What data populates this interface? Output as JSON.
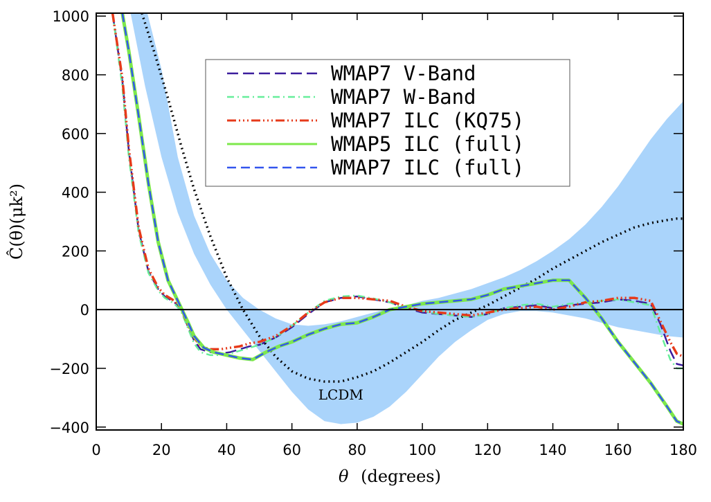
{
  "chart_data": {
    "type": "line",
    "title": "",
    "xlabel_symbol": "θ",
    "xlabel": "(degrees)",
    "ylabel": "Ĉ(θ)(μk²)",
    "xlim": [
      0,
      180
    ],
    "ylim": [
      -410,
      1010
    ],
    "xticks": [
      0,
      20,
      40,
      60,
      80,
      100,
      120,
      140,
      160,
      180
    ],
    "yticks": [
      -400,
      -200,
      0,
      200,
      400,
      600,
      800,
      1000
    ],
    "ytick_labels": [
      "−400",
      "−200",
      "0",
      "200",
      "400",
      "600",
      "800",
      "1000"
    ],
    "zero_line": true,
    "annotation": {
      "text": "LCDM",
      "x": 75,
      "y": -290
    },
    "band": {
      "name": "LCDM 1-sigma band",
      "color": "#aad4fb",
      "x": [
        10,
        15,
        20,
        25,
        30,
        35,
        40,
        45,
        50,
        55,
        60,
        65,
        70,
        75,
        80,
        85,
        90,
        95,
        100,
        105,
        110,
        115,
        120,
        125,
        130,
        135,
        140,
        145,
        150,
        155,
        160,
        165,
        170,
        175,
        180
      ],
      "upper": [
        1040,
        1040,
        820,
        520,
        320,
        190,
        100,
        40,
        0,
        -30,
        -50,
        -55,
        -50,
        -40,
        -25,
        -10,
        5,
        15,
        30,
        40,
        55,
        70,
        90,
        110,
        135,
        165,
        200,
        240,
        290,
        350,
        420,
        500,
        580,
        650,
        710
      ],
      "lower": [
        1040,
        760,
        520,
        330,
        190,
        85,
        0,
        -70,
        -140,
        -210,
        -280,
        -340,
        -380,
        -390,
        -385,
        -365,
        -330,
        -280,
        -220,
        -160,
        -110,
        -70,
        -35,
        -15,
        -5,
        -5,
        -10,
        -20,
        -30,
        -45,
        -60,
        -70,
        -80,
        -90,
        -95
      ]
    },
    "series": [
      {
        "name": "WMAP7 V-Band",
        "color": "#3b1c9c",
        "dash": "16,7",
        "width": 2.5,
        "x": [
          5,
          8,
          10,
          13,
          16,
          19,
          21,
          24,
          26,
          28,
          30,
          32,
          35,
          38,
          41,
          44,
          47,
          50,
          55,
          60,
          65,
          70,
          75,
          80,
          85,
          90,
          95,
          100,
          105,
          110,
          115,
          120,
          125,
          130,
          135,
          140,
          145,
          150,
          155,
          160,
          165,
          170,
          173,
          176,
          178,
          180
        ],
        "y": [
          1010,
          780,
          540,
          270,
          130,
          70,
          45,
          25,
          0,
          -55,
          -105,
          -135,
          -145,
          -150,
          -145,
          -135,
          -125,
          -120,
          -95,
          -60,
          -15,
          25,
          40,
          45,
          35,
          25,
          5,
          -10,
          -15,
          -20,
          -25,
          -15,
          5,
          10,
          15,
          5,
          15,
          20,
          25,
          35,
          30,
          20,
          -50,
          -140,
          -185,
          -190
        ]
      },
      {
        "name": "WMAP7 W-Band",
        "color": "#66ee99",
        "dash": "10,5,2,5",
        "width": 2.5,
        "x": [
          5,
          8,
          10,
          13,
          16,
          19,
          21,
          24,
          26,
          28,
          30,
          32,
          35,
          38,
          41,
          44,
          47,
          50,
          55,
          60,
          65,
          70,
          75,
          80,
          85,
          90,
          95,
          100,
          105,
          110,
          115,
          120,
          125,
          130,
          135,
          140,
          145,
          150,
          155,
          160,
          165,
          170,
          173,
          176,
          178,
          180
        ],
        "y": [
          1010,
          760,
          520,
          260,
          125,
          65,
          40,
          20,
          -5,
          -60,
          -115,
          -145,
          -155,
          -155,
          -150,
          -140,
          -130,
          -120,
          -95,
          -55,
          -10,
          30,
          45,
          48,
          38,
          25,
          5,
          -5,
          -15,
          -20,
          -25,
          -15,
          5,
          15,
          20,
          10,
          20,
          25,
          30,
          35,
          25,
          15,
          -80,
          -170,
          -200,
          -200
        ]
      },
      {
        "name": "WMAP7 ILC (KQ75)",
        "color": "#e63a1a",
        "dash": "13,4,2,4,2,4,2,4",
        "width": 3.5,
        "x": [
          5,
          8,
          10,
          13,
          16,
          19,
          21,
          24,
          26,
          28,
          30,
          32,
          35,
          38,
          41,
          44,
          47,
          50,
          55,
          60,
          65,
          70,
          75,
          80,
          85,
          90,
          95,
          100,
          105,
          110,
          115,
          120,
          125,
          130,
          135,
          140,
          145,
          150,
          155,
          160,
          165,
          170,
          173,
          176,
          178,
          180
        ],
        "y": [
          1010,
          790,
          550,
          280,
          140,
          75,
          50,
          30,
          5,
          -50,
          -95,
          -125,
          -135,
          -135,
          -130,
          -125,
          -115,
          -110,
          -90,
          -55,
          -10,
          25,
          40,
          40,
          35,
          30,
          10,
          -5,
          -10,
          -15,
          -20,
          -10,
          0,
          5,
          10,
          0,
          10,
          25,
          30,
          40,
          40,
          30,
          -40,
          -110,
          -150,
          -160
        ]
      },
      {
        "name": "WMAP5 ILC (full)",
        "color": "#7de84b",
        "dash": "",
        "width": 5,
        "x": [
          8,
          10,
          13,
          16,
          19,
          22,
          25,
          28,
          30,
          33,
          36,
          40,
          44,
          48,
          52,
          56,
          60,
          65,
          70,
          75,
          80,
          85,
          90,
          95,
          100,
          105,
          110,
          115,
          120,
          125,
          130,
          135,
          140,
          145,
          150,
          155,
          160,
          165,
          170,
          175,
          178,
          180
        ],
        "y": [
          1010,
          880,
          660,
          430,
          230,
          100,
          30,
          -40,
          -90,
          -130,
          -145,
          -155,
          -165,
          -170,
          -145,
          -125,
          -110,
          -85,
          -65,
          -50,
          -45,
          -25,
          0,
          10,
          20,
          25,
          30,
          35,
          50,
          70,
          80,
          90,
          100,
          100,
          40,
          -30,
          -110,
          -180,
          -250,
          -330,
          -380,
          -390
        ]
      },
      {
        "name": "WMAP7 ILC (full)",
        "color": "#3355ee",
        "dash": "13,7",
        "width": 2.5,
        "x": [
          8,
          10,
          13,
          16,
          19,
          22,
          25,
          28,
          30,
          33,
          36,
          40,
          44,
          48,
          52,
          56,
          60,
          65,
          70,
          75,
          80,
          85,
          90,
          95,
          100,
          105,
          110,
          115,
          120,
          125,
          130,
          135,
          140,
          145,
          150,
          155,
          160,
          165,
          170,
          175,
          178,
          180
        ],
        "y": [
          1010,
          880,
          660,
          430,
          230,
          100,
          30,
          -40,
          -90,
          -130,
          -145,
          -155,
          -165,
          -170,
          -145,
          -125,
          -110,
          -85,
          -65,
          -50,
          -45,
          -25,
          0,
          10,
          20,
          25,
          30,
          35,
          50,
          70,
          80,
          90,
          100,
          100,
          40,
          -30,
          -110,
          -180,
          -250,
          -330,
          -380,
          -390
        ]
      },
      {
        "name": "LCDM",
        "color": "#000000",
        "dash": "2,5",
        "width": 3.5,
        "in_legend": false,
        "x": [
          14,
          18,
          22,
          26,
          30,
          35,
          40,
          45,
          50,
          55,
          60,
          65,
          70,
          75,
          80,
          85,
          90,
          95,
          100,
          105,
          110,
          115,
          120,
          125,
          130,
          135,
          140,
          145,
          150,
          155,
          160,
          165,
          170,
          175,
          178,
          180
        ],
        "y": [
          1010,
          870,
          720,
          560,
          410,
          250,
          110,
          0,
          -90,
          -160,
          -210,
          -235,
          -245,
          -245,
          -230,
          -210,
          -180,
          -145,
          -110,
          -70,
          -35,
          -10,
          15,
          45,
          75,
          105,
          140,
          170,
          200,
          230,
          255,
          280,
          295,
          305,
          310,
          310
        ]
      }
    ],
    "legend": {
      "placement": "top-center",
      "entries": [
        "WMAP7 V-Band",
        "WMAP7 W-Band",
        "WMAP7 ILC (KQ75)",
        "WMAP5 ILC (full)",
        "WMAP7 ILC (full)"
      ]
    }
  }
}
